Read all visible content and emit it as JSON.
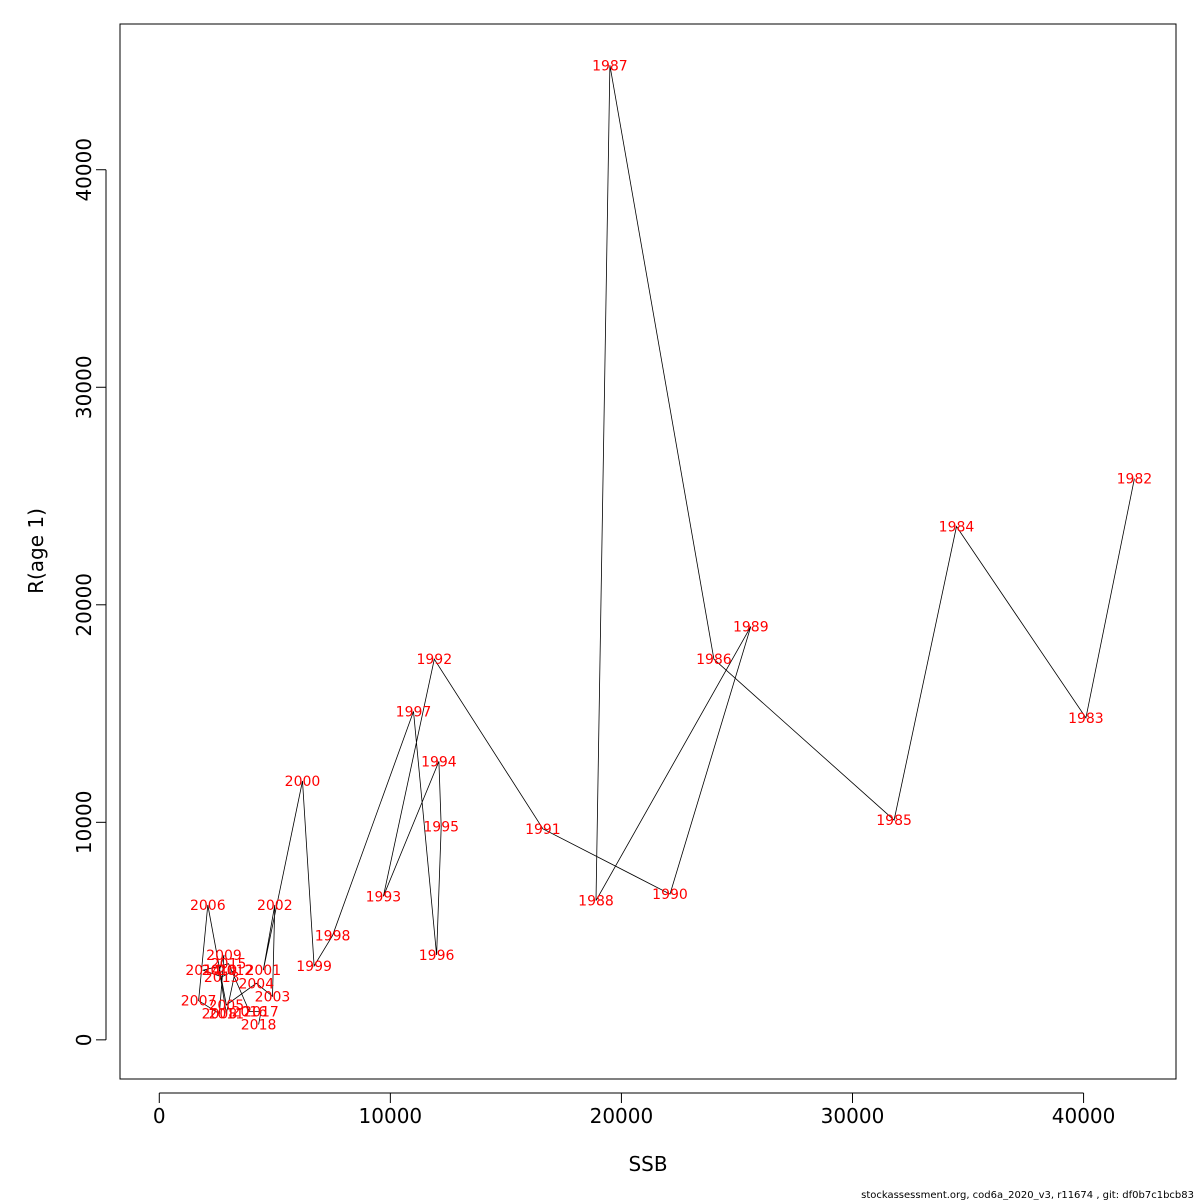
{
  "chart_data": {
    "type": "line",
    "xlabel": "SSB",
    "ylabel": "R(age 1)",
    "xlim": [
      -1700,
      44000
    ],
    "ylim": [
      -1800,
      46700
    ],
    "xticks": [
      0,
      10000,
      20000,
      30000,
      40000
    ],
    "yticks": [
      0,
      10000,
      20000,
      30000,
      40000
    ],
    "grid": false,
    "series": [
      {
        "points": [
          {
            "year": "1982",
            "x": 42200,
            "y": 25800
          },
          {
            "year": "1983",
            "x": 40100,
            "y": 14800
          },
          {
            "year": "1984",
            "x": 34500,
            "y": 23600
          },
          {
            "year": "1985",
            "x": 31800,
            "y": 10100
          },
          {
            "year": "1986",
            "x": 24000,
            "y": 17500
          },
          {
            "year": "1987",
            "x": 19500,
            "y": 44800
          },
          {
            "year": "1988",
            "x": 18900,
            "y": 6400
          },
          {
            "year": "1989",
            "x": 25600,
            "y": 19000
          },
          {
            "year": "1990",
            "x": 22100,
            "y": 6700
          },
          {
            "year": "1991",
            "x": 16600,
            "y": 9700
          },
          {
            "year": "1992",
            "x": 11900,
            "y": 17500
          },
          {
            "year": "1993",
            "x": 9700,
            "y": 6600
          },
          {
            "year": "1994",
            "x": 12100,
            "y": 12800
          },
          {
            "year": "1995",
            "x": 12200,
            "y": 9800
          },
          {
            "year": "1996",
            "x": 12000,
            "y": 3900
          },
          {
            "year": "1997",
            "x": 11000,
            "y": 15100
          },
          {
            "year": "1998",
            "x": 7500,
            "y": 4800
          },
          {
            "year": "1999",
            "x": 6700,
            "y": 3400
          },
          {
            "year": "2000",
            "x": 6200,
            "y": 11900
          },
          {
            "year": "2001",
            "x": 4500,
            "y": 3200
          },
          {
            "year": "2002",
            "x": 5000,
            "y": 6200
          },
          {
            "year": "2003",
            "x": 4900,
            "y": 2000
          },
          {
            "year": "2004",
            "x": 4200,
            "y": 2600
          },
          {
            "year": "2005",
            "x": 2900,
            "y": 1600
          },
          {
            "year": "2006",
            "x": 2100,
            "y": 6200
          },
          {
            "year": "2007",
            "x": 1700,
            "y": 1800
          },
          {
            "year": "2008",
            "x": 2600,
            "y": 1200
          },
          {
            "year": "2009",
            "x": 2800,
            "y": 3900
          },
          {
            "year": "2010",
            "x": 2600,
            "y": 3200
          },
          {
            "year": "2011",
            "x": 2900,
            "y": 1200
          },
          {
            "year": "2012",
            "x": 3300,
            "y": 3200
          },
          {
            "year": "2013",
            "x": 2700,
            "y": 2900
          },
          {
            "year": "2014",
            "x": 1900,
            "y": 3200
          },
          {
            "year": "2015",
            "x": 3000,
            "y": 3500
          },
          {
            "year": "2016",
            "x": 3900,
            "y": 1300
          },
          {
            "year": "2017",
            "x": 4400,
            "y": 1300
          },
          {
            "year": "2018",
            "x": 4300,
            "y": 700
          }
        ]
      }
    ]
  },
  "footer": {
    "note": "stockassessment.org, cod6a_2020_v3, r11674 , git: df0b7c1bcb83"
  }
}
